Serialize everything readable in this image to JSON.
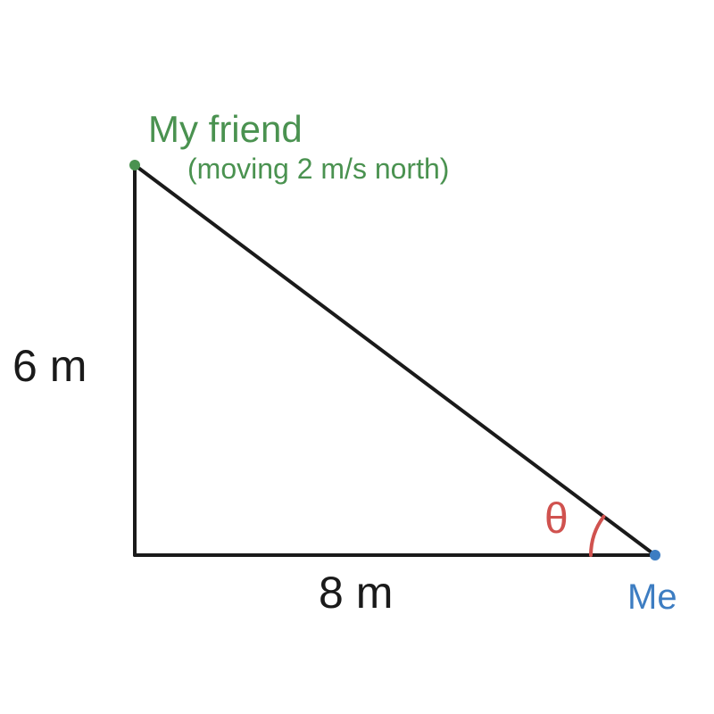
{
  "colors": {
    "line": "#1a1a1a",
    "friend": "#4a9250",
    "me": "#3d7dc2",
    "angle": "#d0524f",
    "text": "#1a1a1a"
  },
  "labels": {
    "friend_name": "My friend",
    "friend_note": "(moving 2 m/s north)",
    "vertical_side": "6 m",
    "horizontal_side": "8 m",
    "angle": "θ",
    "me": "Me"
  }
}
